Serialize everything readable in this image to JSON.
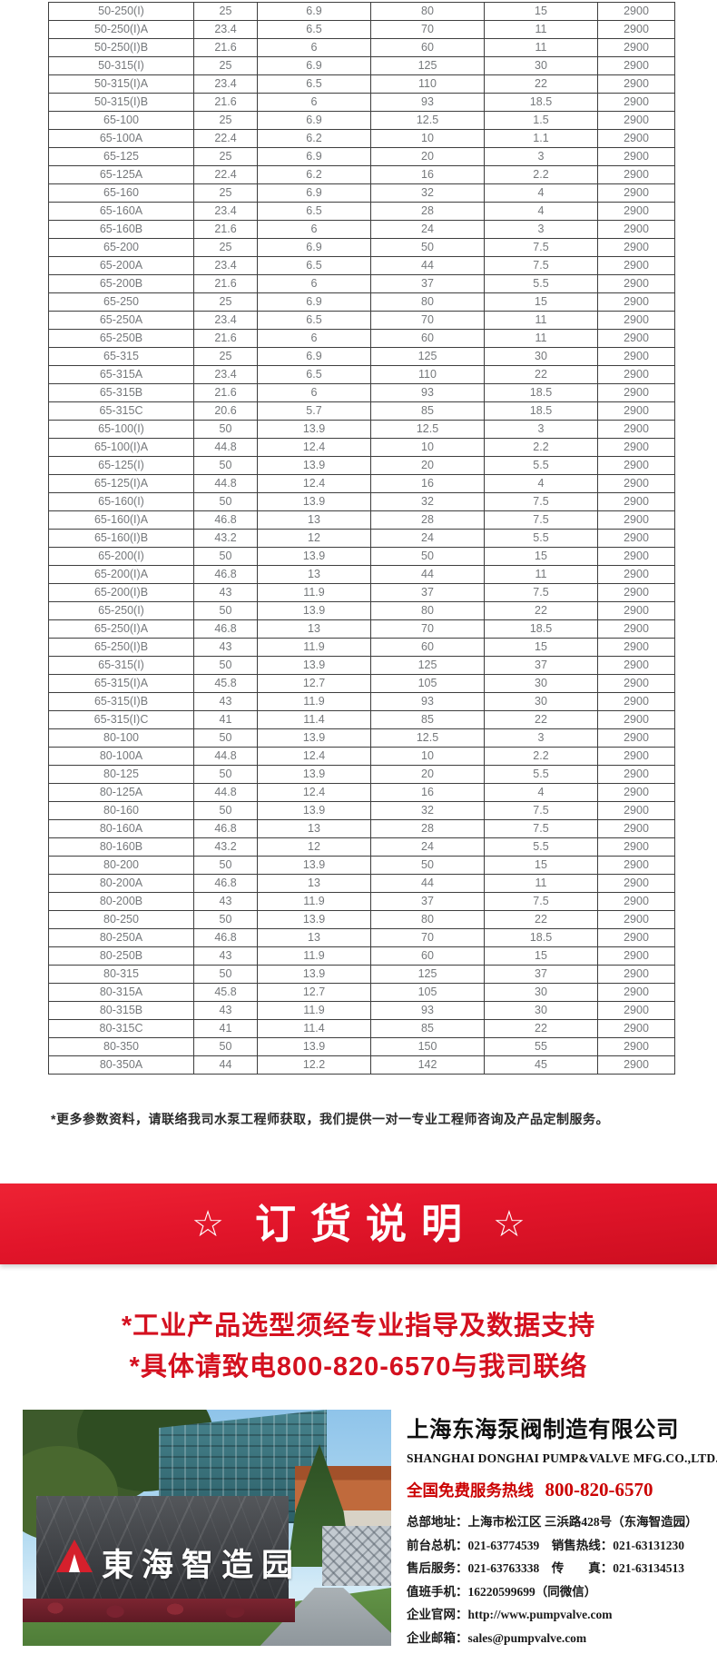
{
  "table": {
    "rows": [
      [
        "50-250(I)",
        "25",
        "6.9",
        "80",
        "15",
        "2900"
      ],
      [
        "50-250(I)A",
        "23.4",
        "6.5",
        "70",
        "11",
        "2900"
      ],
      [
        "50-250(I)B",
        "21.6",
        "6",
        "60",
        "11",
        "2900"
      ],
      [
        "50-315(I)",
        "25",
        "6.9",
        "125",
        "30",
        "2900"
      ],
      [
        "50-315(I)A",
        "23.4",
        "6.5",
        "110",
        "22",
        "2900"
      ],
      [
        "50-315(I)B",
        "21.6",
        "6",
        "93",
        "18.5",
        "2900"
      ],
      [
        "65-100",
        "25",
        "6.9",
        "12.5",
        "1.5",
        "2900"
      ],
      [
        "65-100A",
        "22.4",
        "6.2",
        "10",
        "1.1",
        "2900"
      ],
      [
        "65-125",
        "25",
        "6.9",
        "20",
        "3",
        "2900"
      ],
      [
        "65-125A",
        "22.4",
        "6.2",
        "16",
        "2.2",
        "2900"
      ],
      [
        "65-160",
        "25",
        "6.9",
        "32",
        "4",
        "2900"
      ],
      [
        "65-160A",
        "23.4",
        "6.5",
        "28",
        "4",
        "2900"
      ],
      [
        "65-160B",
        "21.6",
        "6",
        "24",
        "3",
        "2900"
      ],
      [
        "65-200",
        "25",
        "6.9",
        "50",
        "7.5",
        "2900"
      ],
      [
        "65-200A",
        "23.4",
        "6.5",
        "44",
        "7.5",
        "2900"
      ],
      [
        "65-200B",
        "21.6",
        "6",
        "37",
        "5.5",
        "2900"
      ],
      [
        "65-250",
        "25",
        "6.9",
        "80",
        "15",
        "2900"
      ],
      [
        "65-250A",
        "23.4",
        "6.5",
        "70",
        "11",
        "2900"
      ],
      [
        "65-250B",
        "21.6",
        "6",
        "60",
        "11",
        "2900"
      ],
      [
        "65-315",
        "25",
        "6.9",
        "125",
        "30",
        "2900"
      ],
      [
        "65-315A",
        "23.4",
        "6.5",
        "110",
        "22",
        "2900"
      ],
      [
        "65-315B",
        "21.6",
        "6",
        "93",
        "18.5",
        "2900"
      ],
      [
        "65-315C",
        "20.6",
        "5.7",
        "85",
        "18.5",
        "2900"
      ],
      [
        "65-100(I)",
        "50",
        "13.9",
        "12.5",
        "3",
        "2900"
      ],
      [
        "65-100(I)A",
        "44.8",
        "12.4",
        "10",
        "2.2",
        "2900"
      ],
      [
        "65-125(I)",
        "50",
        "13.9",
        "20",
        "5.5",
        "2900"
      ],
      [
        "65-125(I)A",
        "44.8",
        "12.4",
        "16",
        "4",
        "2900"
      ],
      [
        "65-160(I)",
        "50",
        "13.9",
        "32",
        "7.5",
        "2900"
      ],
      [
        "65-160(I)A",
        "46.8",
        "13",
        "28",
        "7.5",
        "2900"
      ],
      [
        "65-160(I)B",
        "43.2",
        "12",
        "24",
        "5.5",
        "2900"
      ],
      [
        "65-200(I)",
        "50",
        "13.9",
        "50",
        "15",
        "2900"
      ],
      [
        "65-200(I)A",
        "46.8",
        "13",
        "44",
        "11",
        "2900"
      ],
      [
        "65-200(I)B",
        "43",
        "11.9",
        "37",
        "7.5",
        "2900"
      ],
      [
        "65-250(I)",
        "50",
        "13.9",
        "80",
        "22",
        "2900"
      ],
      [
        "65-250(I)A",
        "46.8",
        "13",
        "70",
        "18.5",
        "2900"
      ],
      [
        "65-250(I)B",
        "43",
        "11.9",
        "60",
        "15",
        "2900"
      ],
      [
        "65-315(I)",
        "50",
        "13.9",
        "125",
        "37",
        "2900"
      ],
      [
        "65-315(I)A",
        "45.8",
        "12.7",
        "105",
        "30",
        "2900"
      ],
      [
        "65-315(I)B",
        "43",
        "11.9",
        "93",
        "30",
        "2900"
      ],
      [
        "65-315(I)C",
        "41",
        "11.4",
        "85",
        "22",
        "2900"
      ],
      [
        "80-100",
        "50",
        "13.9",
        "12.5",
        "3",
        "2900"
      ],
      [
        "80-100A",
        "44.8",
        "12.4",
        "10",
        "2.2",
        "2900"
      ],
      [
        "80-125",
        "50",
        "13.9",
        "20",
        "5.5",
        "2900"
      ],
      [
        "80-125A",
        "44.8",
        "12.4",
        "16",
        "4",
        "2900"
      ],
      [
        "80-160",
        "50",
        "13.9",
        "32",
        "7.5",
        "2900"
      ],
      [
        "80-160A",
        "46.8",
        "13",
        "28",
        "7.5",
        "2900"
      ],
      [
        "80-160B",
        "43.2",
        "12",
        "24",
        "5.5",
        "2900"
      ],
      [
        "80-200",
        "50",
        "13.9",
        "50",
        "15",
        "2900"
      ],
      [
        "80-200A",
        "46.8",
        "13",
        "44",
        "11",
        "2900"
      ],
      [
        "80-200B",
        "43",
        "11.9",
        "37",
        "7.5",
        "2900"
      ],
      [
        "80-250",
        "50",
        "13.9",
        "80",
        "22",
        "2900"
      ],
      [
        "80-250A",
        "46.8",
        "13",
        "70",
        "18.5",
        "2900"
      ],
      [
        "80-250B",
        "43",
        "11.9",
        "60",
        "15",
        "2900"
      ],
      [
        "80-315",
        "50",
        "13.9",
        "125",
        "37",
        "2900"
      ],
      [
        "80-315A",
        "45.8",
        "12.7",
        "105",
        "30",
        "2900"
      ],
      [
        "80-315B",
        "43",
        "11.9",
        "93",
        "30",
        "2900"
      ],
      [
        "80-315C",
        "41",
        "11.4",
        "85",
        "22",
        "2900"
      ],
      [
        "80-350",
        "50",
        "13.9",
        "150",
        "55",
        "2900"
      ],
      [
        "80-350A",
        "44",
        "12.2",
        "142",
        "45",
        "2900"
      ]
    ]
  },
  "note": "*更多参数资料，请联络我司水泵工程师获取，我们提供一对一专业工程师咨询及产品定制服务。",
  "banner": {
    "star_left": "☆",
    "title": "订货说明",
    "star_right": "☆"
  },
  "notice_lines": [
    "*工业产品选型须经专业指导及数据支持",
    "*具体请致电800-820-6570与我司联络"
  ],
  "company": {
    "name_cn": "上海东海泵阀制造有限公司",
    "name_en": "SHANGHAI DONGHAI PUMP&VALVE MFG.CO.,LTD.",
    "hotline_label": "全国免费服务热线",
    "hotline_number": "800-820-6570",
    "contacts": [
      "总部地址：上海市松江区 三浜路428号（东海智造园）",
      "前台总机：021-63774539　销售热线：021-63131230",
      "售后服务：021-63763338　传　　真：021-63134513",
      "值班手机：16220599699（同微信）",
      "企业官网：http://www.pumpvalve.com",
      "企业邮箱：sales@pumpvalve.com"
    ],
    "photo_wall_text": "東海智造园"
  },
  "colors": {
    "banner_red_top": "#ee2334",
    "banner_red_bottom": "#cd0e20",
    "notice_red": "#d4101f",
    "hotline_red": "#cb0001",
    "table_text": "#75787b",
    "table_border": "#3e3e3e"
  }
}
